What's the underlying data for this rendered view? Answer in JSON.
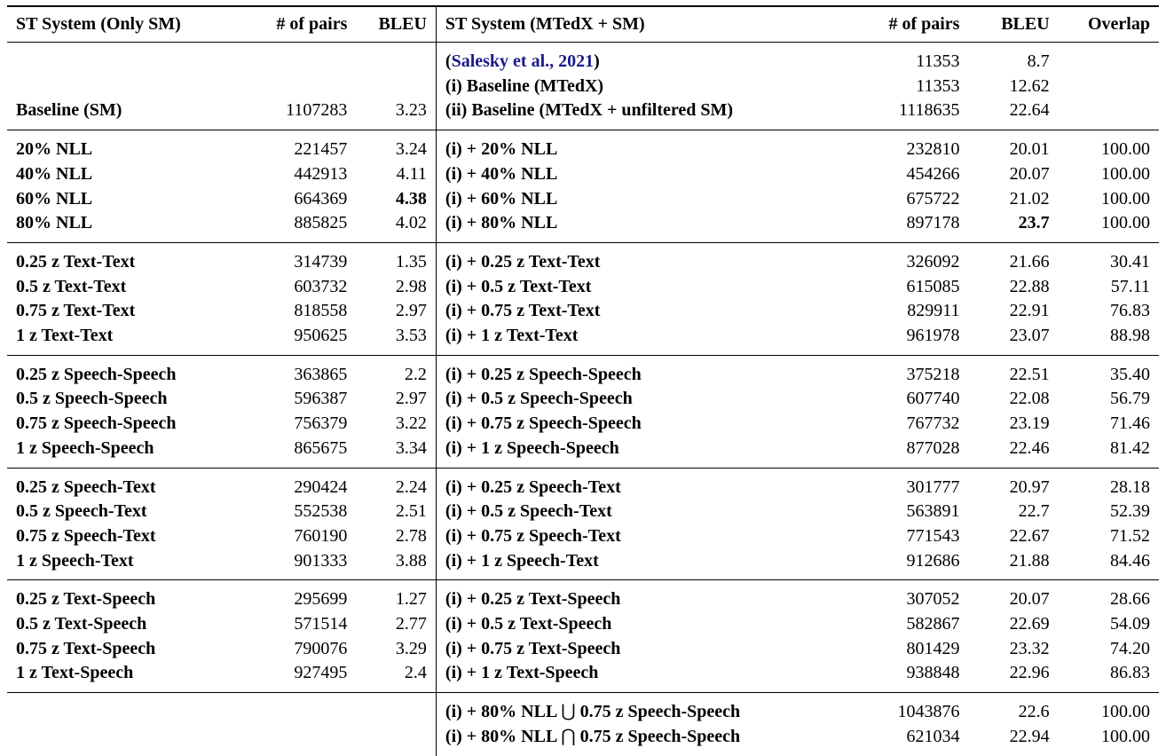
{
  "headers": {
    "left_system": "ST System (Only SM)",
    "left_pairs": "# of pairs",
    "left_bleu": "BLEU",
    "right_system": "ST System (MTedX + SM)",
    "right_pairs": "# of pairs",
    "right_bleu": "BLEU",
    "overlap": "Overlap"
  },
  "baseline_group": {
    "rows": [
      {
        "left_system": "",
        "left_pairs": "",
        "left_bleu": "",
        "right_system_open": "(",
        "right_system_cite": "Salesky et al., 2021",
        "right_system_close": ")",
        "right_pairs": "11353",
        "right_bleu": "8.7",
        "overlap": ""
      },
      {
        "left_system": "",
        "left_pairs": "",
        "left_bleu": "",
        "right_system": "(i) Baseline (MTedX)",
        "right_pairs": "11353",
        "right_bleu": "12.62",
        "overlap": ""
      },
      {
        "left_system": "Baseline (SM)",
        "left_pairs": "1107283",
        "left_bleu": "3.23",
        "right_system": "(ii) Baseline (MTedX + unfiltered SM)",
        "right_pairs": "1118635",
        "right_bleu": "22.64",
        "overlap": ""
      }
    ]
  },
  "groups": [
    {
      "name": "nll",
      "rows": [
        {
          "left_system": "20% NLL",
          "left_pairs": "221457",
          "left_bleu": "3.24",
          "right_system": "(i) + 20% NLL",
          "right_pairs": "232810",
          "right_bleu": "20.01",
          "overlap": "100.00"
        },
        {
          "left_system": "40% NLL",
          "left_pairs": "442913",
          "left_bleu": "4.11",
          "right_system": "(i) + 40% NLL",
          "right_pairs": "454266",
          "right_bleu": "20.07",
          "overlap": "100.00"
        },
        {
          "left_system": "60% NLL",
          "left_pairs": "664369",
          "left_bleu": "4.38",
          "right_system": "(i) + 60% NLL",
          "right_pairs": "675722",
          "right_bleu": "21.02",
          "overlap": "100.00"
        },
        {
          "left_system": "80% NLL",
          "left_pairs": "885825",
          "left_bleu": "4.02",
          "right_system": "(i) + 80% NLL",
          "right_pairs": "897178",
          "right_bleu": "23.7",
          "overlap": "100.00"
        }
      ]
    },
    {
      "name": "text-text",
      "rows": [
        {
          "left_system": "0.25 z Text-Text",
          "left_pairs": "314739",
          "left_bleu": "1.35",
          "right_system": "(i) + 0.25 z Text-Text",
          "right_pairs": "326092",
          "right_bleu": "21.66",
          "overlap": "30.41"
        },
        {
          "left_system": "0.5 z Text-Text",
          "left_pairs": "603732",
          "left_bleu": "2.98",
          "right_system": "(i) + 0.5 z Text-Text",
          "right_pairs": "615085",
          "right_bleu": "22.88",
          "overlap": "57.11"
        },
        {
          "left_system": "0.75 z Text-Text",
          "left_pairs": "818558",
          "left_bleu": "2.97",
          "right_system": "(i) + 0.75 z Text-Text",
          "right_pairs": "829911",
          "right_bleu": "22.91",
          "overlap": "76.83"
        },
        {
          "left_system": "1 z Text-Text",
          "left_pairs": "950625",
          "left_bleu": "3.53",
          "right_system": "(i) + 1 z Text-Text",
          "right_pairs": "961978",
          "right_bleu": "23.07",
          "overlap": "88.98"
        }
      ]
    },
    {
      "name": "speech-speech",
      "rows": [
        {
          "left_system": "0.25 z Speech-Speech",
          "left_pairs": "363865",
          "left_bleu": "2.2",
          "right_system": "(i) + 0.25 z Speech-Speech",
          "right_pairs": "375218",
          "right_bleu": "22.51",
          "overlap": "35.40"
        },
        {
          "left_system": "0.5 z Speech-Speech",
          "left_pairs": "596387",
          "left_bleu": "2.97",
          "right_system": "(i) + 0.5 z Speech-Speech",
          "right_pairs": "607740",
          "right_bleu": "22.08",
          "overlap": "56.79"
        },
        {
          "left_system": "0.75 z Speech-Speech",
          "left_pairs": "756379",
          "left_bleu": "3.22",
          "right_system": "(i) + 0.75 z Speech-Speech",
          "right_pairs": "767732",
          "right_bleu": "23.19",
          "overlap": "71.46"
        },
        {
          "left_system": "1 z Speech-Speech",
          "left_pairs": "865675",
          "left_bleu": "3.34",
          "right_system": "(i) + 1 z Speech-Speech",
          "right_pairs": "877028",
          "right_bleu": "22.46",
          "overlap": "81.42"
        }
      ]
    },
    {
      "name": "speech-text",
      "rows": [
        {
          "left_system": "0.25 z Speech-Text",
          "left_pairs": "290424",
          "left_bleu": "2.24",
          "right_system": "(i) + 0.25 z Speech-Text",
          "right_pairs": "301777",
          "right_bleu": "20.97",
          "overlap": "28.18"
        },
        {
          "left_system": "0.5 z Speech-Text",
          "left_pairs": "552538",
          "left_bleu": "2.51",
          "right_system": "(i) + 0.5 z Speech-Text",
          "right_pairs": "563891",
          "right_bleu": "22.7",
          "overlap": "52.39"
        },
        {
          "left_system": "0.75 z Speech-Text",
          "left_pairs": "760190",
          "left_bleu": "2.78",
          "right_system": "(i) + 0.75 z Speech-Text",
          "right_pairs": "771543",
          "right_bleu": "22.67",
          "overlap": "71.52"
        },
        {
          "left_system": "1 z Speech-Text",
          "left_pairs": "901333",
          "left_bleu": "3.88",
          "right_system": "(i) + 1 z Speech-Text",
          "right_pairs": "912686",
          "right_bleu": "21.88",
          "overlap": "84.46"
        }
      ]
    },
    {
      "name": "text-speech",
      "rows": [
        {
          "left_system": "0.25 z Text-Speech",
          "left_pairs": "295699",
          "left_bleu": "1.27",
          "right_system": "(i) + 0.25 z Text-Speech",
          "right_pairs": "307052",
          "right_bleu": "20.07",
          "overlap": "28.66"
        },
        {
          "left_system": "0.5 z Text-Speech",
          "left_pairs": "571514",
          "left_bleu": "2.77",
          "right_system": "(i) + 0.5 z Text-Speech",
          "right_pairs": "582867",
          "right_bleu": "22.69",
          "overlap": "54.09"
        },
        {
          "left_system": "0.75 z Text-Speech",
          "left_pairs": "790076",
          "left_bleu": "3.29",
          "right_system": "(i) + 0.75 z Text-Speech",
          "right_pairs": "801429",
          "right_bleu": "23.32",
          "overlap": "74.20"
        },
        {
          "left_system": "1 z Text-Speech",
          "left_pairs": "927495",
          "left_bleu": "2.4",
          "right_system": "(i) + 1 z Text-Speech",
          "right_pairs": "938848",
          "right_bleu": "22.96",
          "overlap": "86.83"
        }
      ]
    }
  ],
  "combined_group": {
    "rows": [
      {
        "right_system_a": "(i) + 80% NLL",
        "operator": "⋃",
        "right_system_b": "0.75 z Speech-Speech",
        "right_pairs": "1043876",
        "right_bleu": "22.6",
        "overlap": "100.00"
      },
      {
        "right_system_a": "(i) + 80% NLL",
        "operator": "⋂",
        "right_system_b": "0.75 z Speech-Speech",
        "right_pairs": "621034",
        "right_bleu": "22.94",
        "overlap": "100.00"
      }
    ]
  }
}
